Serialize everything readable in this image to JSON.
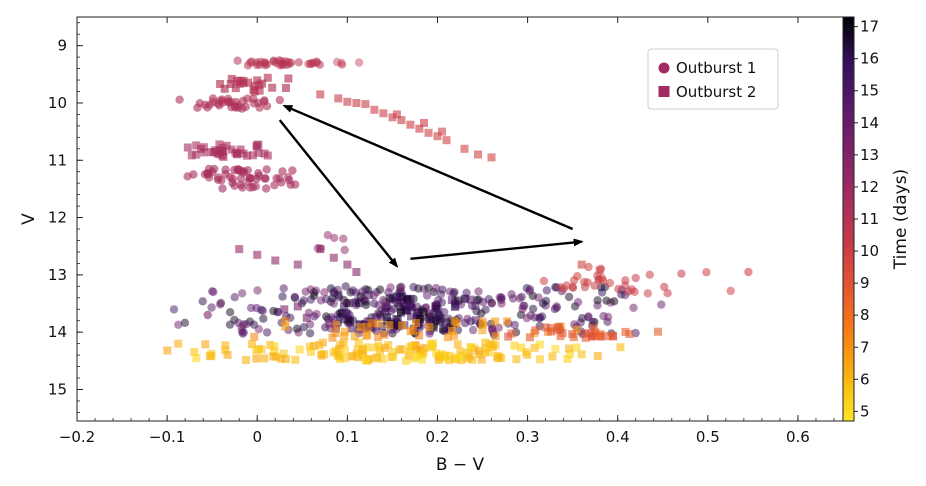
{
  "chart_data": {
    "type": "scatter",
    "title": "",
    "xlabel": "B − V",
    "ylabel": "V",
    "xlim": [
      -0.2,
      0.65
    ],
    "ylim": [
      15.55,
      8.5
    ],
    "y_inverted": true,
    "xticks": [
      -0.2,
      -0.1,
      0.0,
      0.1,
      0.2,
      0.3,
      0.4,
      0.5,
      0.6
    ],
    "xtick_labels": [
      "−0.2",
      "−0.1",
      "0",
      "0.1",
      "0.2",
      "0.3",
      "0.4",
      "0.5",
      "0.6"
    ],
    "yticks": [
      9,
      10,
      11,
      12,
      13,
      14,
      15
    ],
    "ytick_labels": [
      "9",
      "10",
      "11",
      "12",
      "13",
      "14",
      "15"
    ],
    "colorbar": {
      "label": "Time (days)",
      "range": [
        4.7,
        17.3
      ],
      "ticks": [
        5,
        6,
        7,
        8,
        9,
        10,
        11,
        12,
        13,
        14,
        15,
        16,
        17
      ],
      "tick_labels": [
        "5",
        "6",
        "7",
        "8",
        "9",
        "10",
        "11",
        "12",
        "13",
        "14",
        "15",
        "16",
        "17"
      ],
      "colormap": "inferno",
      "stops": [
        "#fde725",
        "#f9b30f",
        "#f57d15",
        "#e35532",
        "#c53a4a",
        "#a42c60",
        "#7f2269",
        "#5a1a6b",
        "#34105a",
        "#000004"
      ]
    },
    "legend": {
      "position": "top-right",
      "entries": [
        {
          "label": "Outburst 1",
          "marker": "circle",
          "color": "#a32b61"
        },
        {
          "label": "Outburst 2",
          "marker": "square",
          "color": "#a32b61"
        }
      ]
    },
    "annotations": [
      {
        "type": "arrow",
        "from": [
          0.025,
          10.3
        ],
        "to": [
          0.155,
          12.85
        ]
      },
      {
        "type": "arrow",
        "from": [
          0.17,
          12.72
        ],
        "to": [
          0.36,
          12.42
        ]
      },
      {
        "type": "arrow",
        "from": [
          0.35,
          12.2
        ],
        "to": [
          0.03,
          10.05
        ]
      }
    ],
    "series": [
      {
        "name": "Outburst 1",
        "marker": "circle",
        "clusters": [
          {
            "x": [
              -0.01,
              0.06
            ],
            "y": [
              9.25,
              9.35
            ],
            "n": 34,
            "t": [
              10.7,
              11.0
            ],
            "alpha": 0.55
          },
          {
            "x": [
              0.08,
              0.12
            ],
            "y": [
              9.25,
              9.35
            ],
            "n": 4,
            "t": [
              10.5,
              10.7
            ],
            "alpha": 0.45
          },
          {
            "x": [
              -0.07,
              0.01
            ],
            "y": [
              9.92,
              10.1
            ],
            "n": 34,
            "t": [
              11.0,
              11.4
            ],
            "alpha": 0.6
          },
          {
            "x": [
              -0.055,
              0.02
            ],
            "y": [
              11.15,
              11.5
            ],
            "n": 55,
            "t": [
              11.3,
              11.8
            ],
            "alpha": 0.6
          },
          {
            "x": [
              0.065,
              0.1
            ],
            "y": [
              12.3,
              12.6
            ],
            "n": 6,
            "t": [
              12.4,
              12.8
            ],
            "alpha": 0.5
          },
          {
            "x": [
              0.02,
              0.33
            ],
            "y": [
              13.2,
              14.05
            ],
            "n": 300,
            "t": [
              13.2,
              17.2
            ],
            "alpha": 0.5
          },
          {
            "x": [
              0.32,
              0.48
            ],
            "y": [
              12.85,
              13.35
            ],
            "n": 34,
            "t": [
              9.8,
              10.3
            ],
            "alpha": 0.55
          }
        ],
        "points": [
          {
            "x": -0.055,
            "y": 13.7,
            "t": 13.0
          },
          {
            "x": 0.545,
            "y": 12.95,
            "t": 9.8
          },
          {
            "x": 0.025,
            "y": 9.95,
            "t": 11.2
          }
        ]
      },
      {
        "name": "Outburst 2",
        "marker": "square",
        "clusters": [
          {
            "x": [
              -0.035,
              0.02
            ],
            "y": [
              9.55,
              9.8
            ],
            "n": 22,
            "t": [
              10.9,
              11.2
            ],
            "alpha": 0.65
          },
          {
            "x": [
              -0.07,
              0.0
            ],
            "y": [
              10.72,
              10.95
            ],
            "n": 34,
            "t": [
              11.4,
              11.8
            ],
            "alpha": 0.6
          },
          {
            "x": [
              0.11,
              0.21
            ],
            "y": [
              13.35,
              13.95
            ],
            "n": 90,
            "t": [
              14.5,
              17.0
            ],
            "alpha": 0.55
          },
          {
            "x": [
              0.01,
              0.3
            ],
            "y": [
              14.18,
              14.5
            ],
            "n": 150,
            "t": [
              5.0,
              6.5
            ],
            "alpha": 0.6
          },
          {
            "x": [
              0.08,
              0.32
            ],
            "y": [
              13.8,
              14.1
            ],
            "n": 40,
            "t": [
              6.5,
              7.5
            ],
            "alpha": 0.6
          },
          {
            "x": [
              0.3,
              0.43
            ],
            "y": [
              13.9,
              14.1
            ],
            "n": 30,
            "t": [
              8.3,
              9.2
            ],
            "alpha": 0.6
          }
        ],
        "points": [
          {
            "x": 0.07,
            "y": 9.85,
            "t": 10.2
          },
          {
            "x": 0.09,
            "y": 9.92,
            "t": 10.2
          },
          {
            "x": 0.1,
            "y": 9.98,
            "t": 10.2
          },
          {
            "x": 0.12,
            "y": 10.02,
            "t": 10.2
          },
          {
            "x": 0.13,
            "y": 10.12,
            "t": 10.1
          },
          {
            "x": 0.14,
            "y": 10.18,
            "t": 10.1
          },
          {
            "x": 0.15,
            "y": 10.25,
            "t": 10.1
          },
          {
            "x": 0.16,
            "y": 10.3,
            "t": 10.0
          },
          {
            "x": 0.17,
            "y": 10.38,
            "t": 10.0
          },
          {
            "x": 0.18,
            "y": 10.45,
            "t": 10.0
          },
          {
            "x": 0.19,
            "y": 10.52,
            "t": 9.9
          },
          {
            "x": 0.2,
            "y": 10.58,
            "t": 9.9
          },
          {
            "x": 0.21,
            "y": 10.65,
            "t": 9.9
          },
          {
            "x": 0.23,
            "y": 10.8,
            "t": 9.8
          },
          {
            "x": 0.245,
            "y": 10.9,
            "t": 9.8
          },
          {
            "x": 0.26,
            "y": 10.95,
            "t": 9.8
          },
          {
            "x": 0.11,
            "y": 10.0,
            "t": 10.2
          },
          {
            "x": 0.155,
            "y": 10.2,
            "t": 10.1
          },
          {
            "x": 0.185,
            "y": 10.35,
            "t": 10.0
          },
          {
            "x": 0.205,
            "y": 10.5,
            "t": 9.9
          },
          {
            "x": -0.02,
            "y": 12.55,
            "t": 12.3
          },
          {
            "x": 0.0,
            "y": 12.65,
            "t": 12.4
          },
          {
            "x": 0.02,
            "y": 12.75,
            "t": 12.5
          },
          {
            "x": 0.045,
            "y": 12.82,
            "t": 12.6
          },
          {
            "x": 0.07,
            "y": 12.55,
            "t": 12.5
          },
          {
            "x": 0.085,
            "y": 12.7,
            "t": 12.6
          },
          {
            "x": 0.1,
            "y": 12.82,
            "t": 12.7
          },
          {
            "x": 0.11,
            "y": 12.95,
            "t": 12.8
          },
          {
            "x": 0.03,
            "y": 13.6,
            "t": 13.2
          },
          {
            "x": 0.055,
            "y": 13.75,
            "t": 13.4
          },
          {
            "x": 0.045,
            "y": 13.55,
            "t": 13.3
          },
          {
            "x": 0.08,
            "y": 13.85,
            "t": 13.5
          },
          {
            "x": 0.36,
            "y": 12.82,
            "t": 9.9
          },
          {
            "x": 0.38,
            "y": 12.92,
            "t": 9.9
          }
        ]
      }
    ]
  }
}
